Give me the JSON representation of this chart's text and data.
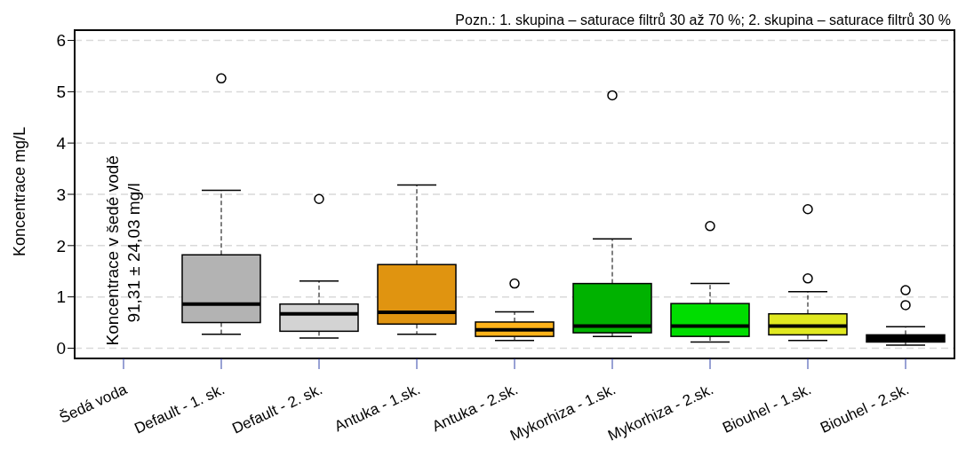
{
  "chart_data": {
    "type": "box",
    "ylabel": "Koncentrace mg/L",
    "categories": [
      "Šedá voda",
      "Default - 1. sk.",
      "Default - 2. sk.",
      "Antuka - 1.sk.",
      "Antuka - 2.sk.",
      "Mykorhiza - 1.sk.",
      "Mykorhiza - 2.sk.",
      "Biouhel - 1.sk.",
      "Biouhel - 2.sk."
    ],
    "boxes": [
      null,
      {
        "low": 0.27,
        "q1": 0.5,
        "median": 0.86,
        "q3": 1.82,
        "high": 3.08,
        "outliers": [
          5.26
        ]
      },
      {
        "low": 0.2,
        "q1": 0.33,
        "median": 0.67,
        "q3": 0.86,
        "high": 1.31,
        "outliers": [
          2.91
        ]
      },
      {
        "low": 0.27,
        "q1": 0.47,
        "median": 0.7,
        "q3": 1.63,
        "high": 3.18
      },
      {
        "low": 0.15,
        "q1": 0.23,
        "median": 0.36,
        "q3": 0.51,
        "high": 0.71,
        "outliers": [
          1.26
        ]
      },
      {
        "low": 0.23,
        "q1": 0.3,
        "median": 0.43,
        "q3": 1.26,
        "high": 2.13,
        "outliers": [
          4.93
        ]
      },
      {
        "low": 0.12,
        "q1": 0.23,
        "median": 0.43,
        "q3": 0.87,
        "high": 1.26,
        "outliers": [
          2.38
        ]
      },
      {
        "low": 0.15,
        "q1": 0.26,
        "median": 0.43,
        "q3": 0.67,
        "high": 1.1,
        "outliers": [
          1.36,
          2.71
        ]
      },
      {
        "low": 0.06,
        "q1": 0.12,
        "median": 0.19,
        "q3": 0.26,
        "high": 0.42,
        "outliers": [
          0.84,
          1.13
        ]
      }
    ],
    "colors": [
      null,
      "#b3b3b3",
      "#d3d3d3",
      "#e09410",
      "#ffb31a",
      "#00b200",
      "#00dd00",
      "#e0e820",
      "#000000"
    ],
    "ylim": [
      -0.2,
      6.2
    ],
    "yticks": [
      0,
      1,
      2,
      3,
      4,
      5,
      6
    ],
    "grid": "y",
    "legend": false,
    "annotations": [
      "Pozn.: 1. skupina – saturace filtrů 30 až 70 %; 2. skupina – saturace filtrů 30 %",
      "Koncentrace v šedé vodě\n91,31 ± 24,03 mg/l"
    ]
  }
}
